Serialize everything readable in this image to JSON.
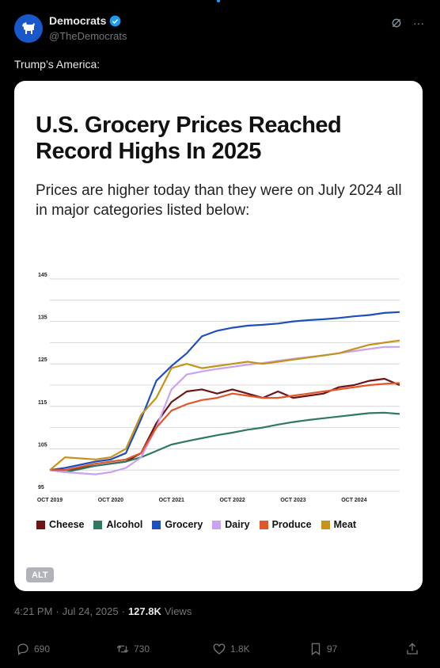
{
  "author": {
    "display_name": "Democrats",
    "handle": "@TheDemocrats",
    "verified": true,
    "avatar_color": "#1958c9"
  },
  "tweet_text": "Trump’s America:",
  "chart_data": {
    "type": "line",
    "title": "U.S. Grocery Prices Reached Record Highs In 2025",
    "subtitle": "Prices are higher today than they were on July 2024 all in major categories listed below:",
    "x_tick_labels": [
      "OCT 2019",
      "OCT 2020",
      "OCT 2021",
      "OCT 2022",
      "OCT 2023",
      "OCT 2024"
    ],
    "y_tick_labels": [
      "95",
      "105",
      "115",
      "125",
      "135",
      "145"
    ],
    "ylim": [
      95,
      145
    ],
    "xlim": [
      2019.75,
      2025.5
    ],
    "grid": true,
    "legend_position": "bottom",
    "series": [
      {
        "name": "Cheese",
        "color": "#6e1414",
        "x": [
          2019.75,
          2020.0,
          2020.5,
          2020.75,
          2021.0,
          2021.25,
          2021.5,
          2021.75,
          2022.0,
          2022.25,
          2022.5,
          2022.75,
          2023.0,
          2023.25,
          2023.5,
          2023.75,
          2024.0,
          2024.25,
          2024.5,
          2024.75,
          2025.0,
          2025.25,
          2025.5
        ],
        "y": [
          100,
          100,
          101,
          101.5,
          102,
          104,
          111,
          116,
          118.5,
          119,
          118,
          119,
          118,
          117,
          118.5,
          117,
          117.5,
          118,
          119.5,
          120,
          121,
          121.5,
          120
        ]
      },
      {
        "name": "Alcohol",
        "color": "#2f7a5e",
        "x": [
          2019.75,
          2020.0,
          2020.5,
          2020.75,
          2021.0,
          2021.25,
          2021.5,
          2021.75,
          2022.0,
          2022.25,
          2022.5,
          2022.75,
          2023.0,
          2023.25,
          2023.5,
          2023.75,
          2024.0,
          2024.25,
          2024.5,
          2024.75,
          2025.0,
          2025.25,
          2025.5
        ],
        "y": [
          100,
          99.5,
          101,
          101.5,
          102,
          103,
          104.5,
          106,
          106.8,
          107.5,
          108.2,
          108.8,
          109.5,
          110,
          110.7,
          111.3,
          111.8,
          112.2,
          112.6,
          113,
          113.4,
          113.5,
          113.2
        ]
      },
      {
        "name": "Grocery",
        "color": "#1f4fbf",
        "x": [
          2019.75,
          2020.0,
          2020.5,
          2020.75,
          2021.0,
          2021.25,
          2021.5,
          2021.75,
          2022.0,
          2022.25,
          2022.5,
          2022.75,
          2023.0,
          2023.25,
          2023.5,
          2023.75,
          2024.0,
          2024.25,
          2024.5,
          2024.75,
          2025.0,
          2025.25,
          2025.5
        ],
        "y": [
          100,
          100.5,
          102,
          102.5,
          104,
          112,
          121,
          124.5,
          127.5,
          131.5,
          132.8,
          133.5,
          134,
          134.2,
          134.5,
          135,
          135.3,
          135.5,
          135.8,
          136.2,
          136.5,
          137,
          137.2
        ]
      },
      {
        "name": "Dairy",
        "color": "#c9a3f0",
        "x": [
          2019.75,
          2020.0,
          2020.5,
          2020.75,
          2021.0,
          2021.25,
          2021.5,
          2021.75,
          2022.0,
          2022.25,
          2022.5,
          2022.75,
          2023.0,
          2023.25,
          2023.5,
          2023.75,
          2024.0,
          2024.25,
          2024.5,
          2024.75,
          2025.0,
          2025.25,
          2025.5
        ],
        "y": [
          100,
          99.5,
          99,
          99.5,
          100.5,
          103,
          110,
          119,
          122.5,
          123.2,
          123.8,
          124.3,
          124.8,
          125.2,
          125.7,
          126.2,
          126.6,
          127,
          127.5,
          128,
          128.5,
          129,
          129
        ]
      },
      {
        "name": "Produce",
        "color": "#e0572c",
        "x": [
          2019.75,
          2020.0,
          2020.5,
          2020.75,
          2021.0,
          2021.25,
          2021.5,
          2021.75,
          2022.0,
          2022.25,
          2022.5,
          2022.75,
          2023.0,
          2023.25,
          2023.5,
          2023.75,
          2024.0,
          2024.25,
          2024.5,
          2024.75,
          2025.0,
          2025.25,
          2025.5
        ],
        "y": [
          100,
          100,
          101.5,
          102,
          102.5,
          104,
          110,
          114,
          115.5,
          116.5,
          117,
          118,
          117.5,
          117,
          117,
          117.5,
          118,
          118.5,
          119,
          119.5,
          120,
          120.3,
          120.5
        ]
      },
      {
        "name": "Meat",
        "color": "#c7921c",
        "x": [
          2019.75,
          2020.0,
          2020.5,
          2020.75,
          2021.0,
          2021.25,
          2021.5,
          2021.75,
          2022.0,
          2022.25,
          2022.5,
          2022.75,
          2023.0,
          2023.25,
          2023.5,
          2023.75,
          2024.0,
          2024.25,
          2024.5,
          2024.75,
          2025.0,
          2025.25,
          2025.5
        ],
        "y": [
          100,
          103,
          102.5,
          103,
          105,
          113,
          117,
          124,
          125,
          124,
          124.5,
          125,
          125.5,
          125,
          125.5,
          126,
          126.5,
          127,
          127.5,
          128.5,
          129.5,
          130,
          130.5
        ]
      }
    ]
  },
  "alt_badge": "ALT",
  "meta": {
    "time": "4:21 PM",
    "date": "Jul 24, 2025",
    "separator": "·",
    "views_count": "127.8K",
    "views_label": "Views"
  },
  "actions": {
    "replies": "690",
    "reposts": "730",
    "likes": "1.8K",
    "bookmarks": "97"
  },
  "colors": {
    "background": "#000000",
    "text": "#e7e9ea",
    "muted": "#71767b",
    "verified": "#1d9bf0"
  }
}
